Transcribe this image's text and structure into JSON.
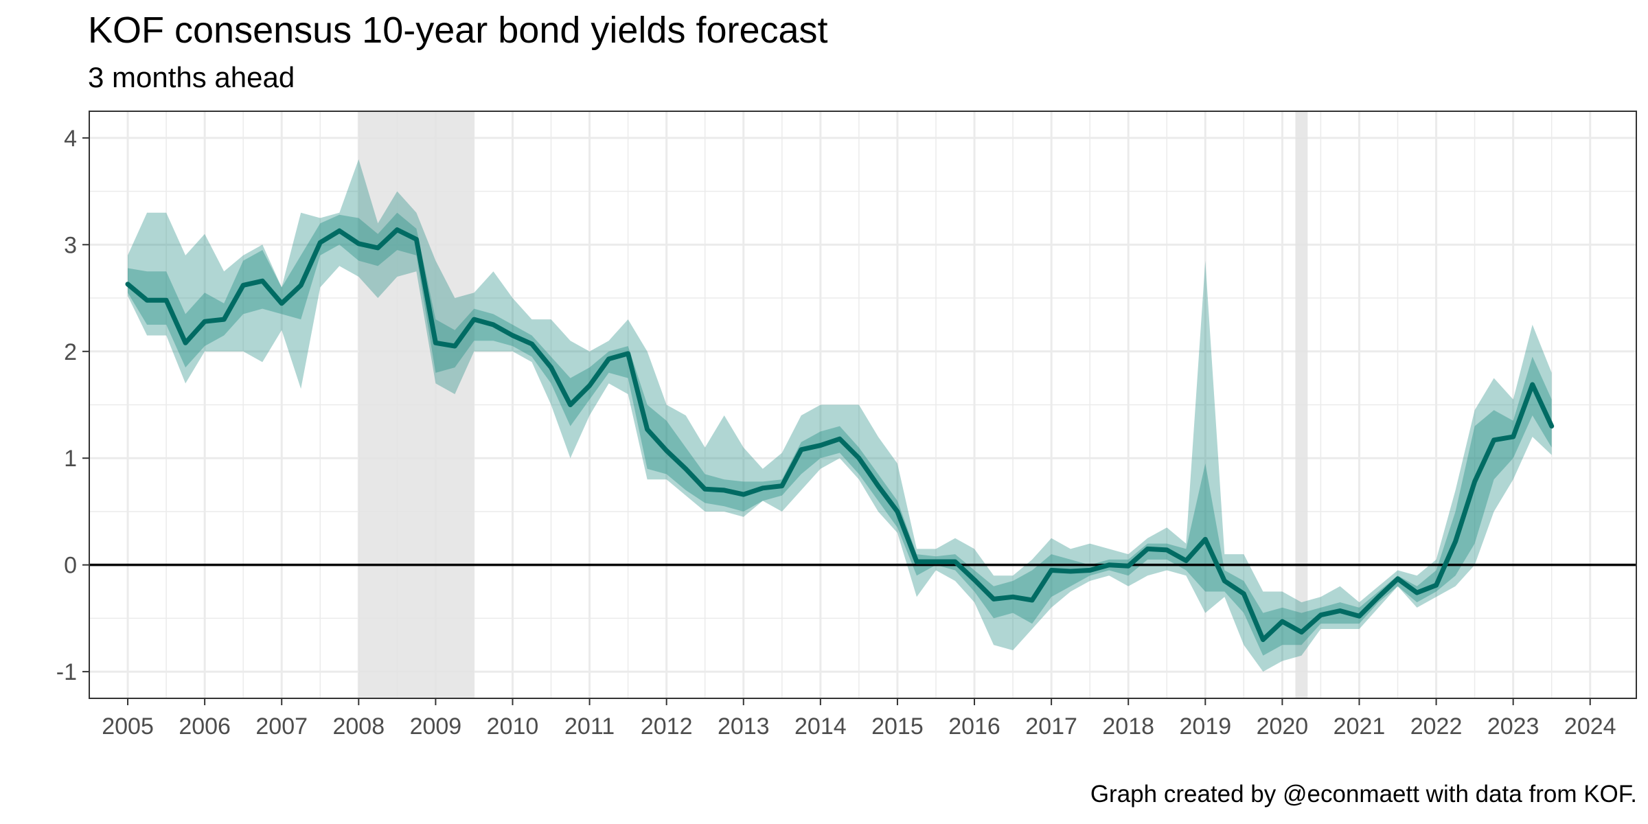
{
  "title": "KOF consensus 10-year bond yields forecast",
  "subtitle": "3 months ahead",
  "caption": "Graph created by @econmaett with data from KOF.",
  "colors": {
    "median_line": "#006b63",
    "band_color": "#1e8a80",
    "outer_band_opacity": 0.35,
    "inner_band_opacity": 0.65,
    "recession_shade": "#e3e3e3",
    "zero_line": "#000000",
    "grid": "#ebebeb",
    "panel_border": "#333333"
  },
  "chart_data": {
    "type": "line",
    "title": "KOF consensus 10-year bond yields forecast",
    "subtitle": "3 months ahead",
    "xlabel": "",
    "ylabel": "",
    "xlim": [
      2004.5,
      2024.6
    ],
    "ylim": [
      -1.25,
      4.25
    ],
    "x_ticks": [
      2005,
      2006,
      2007,
      2008,
      2009,
      2010,
      2011,
      2012,
      2013,
      2014,
      2015,
      2016,
      2017,
      2018,
      2019,
      2020,
      2021,
      2022,
      2023,
      2024
    ],
    "x_tick_labels": [
      "2005",
      "2006",
      "2007",
      "2008",
      "2009",
      "2010",
      "2011",
      "2012",
      "2013",
      "2014",
      "2015",
      "2016",
      "2017",
      "2018",
      "2019",
      "2020",
      "2021",
      "2022",
      "2023",
      "2024"
    ],
    "y_ticks": [
      -1,
      0,
      1,
      2,
      3,
      4
    ],
    "y_tick_labels": [
      "-1",
      "0",
      "1",
      "2",
      "3",
      "4"
    ],
    "grid": true,
    "reference_lines": [
      {
        "axis": "y",
        "value": 0
      }
    ],
    "recession_shading": [
      {
        "start": 2008.0,
        "end": 2009.5
      },
      {
        "start": 2020.17,
        "end": 2020.33
      }
    ],
    "x": [
      2005.0,
      2005.25,
      2005.5,
      2005.75,
      2006.0,
      2006.25,
      2006.5,
      2006.75,
      2007.0,
      2007.25,
      2007.5,
      2007.75,
      2008.0,
      2008.25,
      2008.5,
      2008.75,
      2009.0,
      2009.25,
      2009.5,
      2009.75,
      2010.0,
      2010.25,
      2010.5,
      2010.75,
      2011.0,
      2011.25,
      2011.5,
      2011.75,
      2012.0,
      2012.25,
      2012.5,
      2012.75,
      2013.0,
      2013.25,
      2013.5,
      2013.75,
      2014.0,
      2014.25,
      2014.5,
      2014.75,
      2015.0,
      2015.25,
      2015.5,
      2015.75,
      2016.0,
      2016.25,
      2016.5,
      2016.75,
      2017.0,
      2017.25,
      2017.5,
      2017.75,
      2018.0,
      2018.25,
      2018.5,
      2018.75,
      2019.0,
      2019.25,
      2019.5,
      2019.75,
      2020.0,
      2020.25,
      2020.5,
      2020.75,
      2021.0,
      2021.25,
      2021.5,
      2021.75,
      2022.0,
      2022.25,
      2022.5,
      2022.75,
      2023.0,
      2023.25,
      2023.5
    ],
    "series": [
      {
        "role": "median",
        "values": [
          2.63,
          2.48,
          2.48,
          2.08,
          2.28,
          2.3,
          2.62,
          2.66,
          2.45,
          2.62,
          3.02,
          3.13,
          3.01,
          2.97,
          3.14,
          3.05,
          2.08,
          2.05,
          2.3,
          2.25,
          2.15,
          2.07,
          1.85,
          1.5,
          1.68,
          1.93,
          1.98,
          1.27,
          1.07,
          0.9,
          0.71,
          0.7,
          0.66,
          0.72,
          0.74,
          1.08,
          1.12,
          1.18,
          1.0,
          0.74,
          0.5,
          0.03,
          0.03,
          0.03,
          -0.14,
          -0.32,
          -0.3,
          -0.33,
          -0.05,
          -0.06,
          -0.05,
          0.0,
          -0.01,
          0.15,
          0.14,
          0.04,
          0.24,
          -0.15,
          -0.27,
          -0.7,
          -0.53,
          -0.63,
          -0.47,
          -0.43,
          -0.48,
          -0.3,
          -0.13,
          -0.26,
          -0.19,
          0.22,
          0.78,
          1.17,
          1.2,
          1.69,
          1.3
        ]
      },
      {
        "role": "outer_band_lower",
        "values": [
          2.52,
          2.15,
          2.15,
          1.7,
          2.0,
          2.0,
          2.0,
          1.9,
          2.2,
          1.65,
          2.6,
          2.8,
          2.7,
          2.5,
          2.7,
          2.75,
          1.7,
          1.6,
          2.0,
          2.0,
          2.0,
          1.9,
          1.5,
          1.0,
          1.4,
          1.7,
          1.6,
          0.8,
          0.8,
          0.65,
          0.5,
          0.5,
          0.45,
          0.6,
          0.5,
          0.7,
          0.9,
          1.0,
          0.8,
          0.5,
          0.3,
          -0.3,
          -0.05,
          -0.15,
          -0.35,
          -0.75,
          -0.8,
          -0.6,
          -0.4,
          -0.25,
          -0.15,
          -0.1,
          -0.2,
          -0.1,
          -0.05,
          -0.1,
          -0.45,
          -0.3,
          -0.75,
          -1.0,
          -0.9,
          -0.85,
          -0.6,
          -0.6,
          -0.6,
          -0.4,
          -0.2,
          -0.4,
          -0.3,
          -0.2,
          0.0,
          0.5,
          0.8,
          1.2,
          1.03
        ]
      },
      {
        "role": "inner_band_lower",
        "values": [
          2.55,
          2.25,
          2.25,
          1.85,
          2.05,
          2.15,
          2.35,
          2.4,
          2.35,
          2.3,
          2.9,
          3.0,
          2.85,
          2.8,
          2.95,
          2.9,
          1.8,
          1.85,
          2.1,
          2.1,
          2.05,
          1.95,
          1.7,
          1.3,
          1.55,
          1.8,
          1.75,
          0.9,
          0.85,
          0.7,
          0.58,
          0.55,
          0.5,
          0.6,
          0.65,
          0.85,
          1.0,
          1.05,
          0.85,
          0.6,
          0.35,
          -0.1,
          0.0,
          -0.05,
          -0.25,
          -0.5,
          -0.45,
          -0.55,
          -0.3,
          -0.2,
          -0.1,
          -0.05,
          -0.1,
          0.05,
          0.05,
          -0.05,
          -0.25,
          -0.25,
          -0.45,
          -0.85,
          -0.75,
          -0.75,
          -0.55,
          -0.55,
          -0.55,
          -0.35,
          -0.2,
          -0.35,
          -0.25,
          -0.1,
          0.2,
          0.8,
          1.0,
          1.4,
          1.1
        ]
      },
      {
        "role": "inner_band_upper",
        "values": [
          2.78,
          2.75,
          2.75,
          2.35,
          2.55,
          2.45,
          2.85,
          2.95,
          2.6,
          2.9,
          3.2,
          3.28,
          3.25,
          3.1,
          3.3,
          3.15,
          2.3,
          2.2,
          2.4,
          2.35,
          2.25,
          2.15,
          1.95,
          1.75,
          1.85,
          2.0,
          2.05,
          1.5,
          1.35,
          1.1,
          0.85,
          0.8,
          0.78,
          0.78,
          0.8,
          1.15,
          1.25,
          1.3,
          1.1,
          0.85,
          0.6,
          0.1,
          0.08,
          0.1,
          -0.05,
          -0.2,
          -0.15,
          -0.05,
          0.1,
          0.05,
          0.0,
          0.05,
          0.05,
          0.2,
          0.2,
          0.15,
          0.95,
          -0.05,
          -0.15,
          -0.45,
          -0.4,
          -0.45,
          -0.4,
          -0.35,
          -0.4,
          -0.25,
          -0.1,
          -0.2,
          -0.05,
          0.5,
          1.3,
          1.45,
          1.35,
          1.95,
          1.55
        ]
      },
      {
        "role": "outer_band_upper",
        "values": [
          2.9,
          3.3,
          3.3,
          2.9,
          3.1,
          2.75,
          2.9,
          3.0,
          2.6,
          3.3,
          3.25,
          3.3,
          3.8,
          3.2,
          3.5,
          3.3,
          2.85,
          2.5,
          2.55,
          2.75,
          2.5,
          2.3,
          2.3,
          2.1,
          2.0,
          2.1,
          2.3,
          2.0,
          1.5,
          1.4,
          1.1,
          1.4,
          1.1,
          0.9,
          1.05,
          1.4,
          1.5,
          1.5,
          1.5,
          1.2,
          0.95,
          0.15,
          0.15,
          0.25,
          0.15,
          -0.1,
          -0.1,
          0.05,
          0.25,
          0.15,
          0.2,
          0.15,
          0.1,
          0.25,
          0.35,
          0.2,
          2.85,
          0.1,
          0.1,
          -0.25,
          -0.25,
          -0.35,
          -0.3,
          -0.2,
          -0.35,
          -0.2,
          -0.05,
          -0.1,
          0.05,
          0.7,
          1.45,
          1.75,
          1.55,
          2.25,
          1.8
        ]
      }
    ]
  }
}
